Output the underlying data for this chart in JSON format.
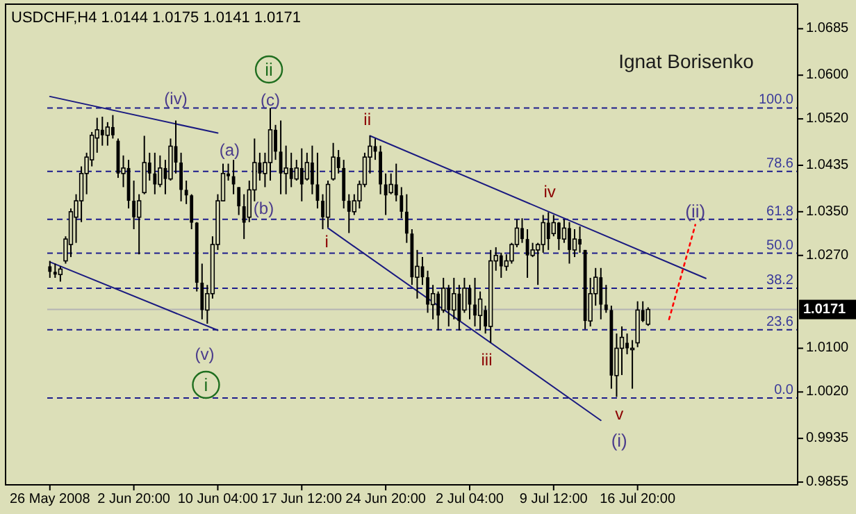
{
  "chart_data": {
    "type": "candlestick",
    "title": "USDCHF,H4  1.0144 1.0175 1.0141 1.0171",
    "categories": [
      "26 May 2008",
      null,
      null,
      null,
      null,
      null,
      null,
      null,
      null,
      null,
      null,
      null,
      null,
      null,
      null,
      null,
      "2 Jun 20:00",
      null,
      null,
      null,
      null,
      null,
      null,
      null,
      null,
      null,
      null,
      null,
      null,
      null,
      null,
      null,
      "10 Jun 04:00",
      null,
      null,
      null,
      null,
      null,
      null,
      null,
      null,
      null,
      null,
      null,
      null,
      null,
      null,
      null,
      "17 Jun 12:00",
      null,
      null,
      null,
      null,
      null,
      null,
      null,
      null,
      null,
      null,
      null,
      null,
      null,
      null,
      null,
      "24 Jun 20:00",
      null,
      null,
      null,
      null,
      null,
      null,
      null,
      null,
      null,
      null,
      null,
      null,
      null,
      null,
      null,
      "2 Jul 04:00",
      null,
      null,
      null,
      null,
      null,
      null,
      null,
      null,
      null,
      null,
      null,
      null,
      null,
      null,
      null,
      "9 Jul 12:00",
      null,
      null,
      null,
      null,
      null,
      null,
      null,
      null,
      null,
      null,
      null,
      null,
      null,
      null,
      null,
      "16 Jul 20:00",
      null,
      null,
      null,
      null,
      null,
      null,
      null,
      null,
      null,
      null,
      null,
      null,
      null,
      null,
      null,
      null,
      null,
      null,
      null,
      null,
      null,
      null,
      null,
      null,
      null,
      null,
      null,
      null,
      null,
      null
    ],
    "ohlc": [
      [
        1.025,
        1.026,
        1.0229,
        1.024
      ],
      [
        1.024,
        1.0255,
        1.0229,
        1.0235
      ],
      [
        1.0235,
        1.025,
        1.0222,
        1.0245
      ],
      [
        1.026,
        1.0305,
        1.0255,
        1.03
      ],
      [
        1.029,
        1.0356,
        1.0267,
        1.035
      ],
      [
        1.034,
        1.0382,
        1.0293,
        1.037
      ],
      [
        1.037,
        1.0433,
        1.0331,
        1.042
      ],
      [
        1.042,
        1.0458,
        1.0382,
        1.045
      ],
      [
        1.0445,
        1.0496,
        1.0433,
        1.049
      ],
      [
        1.0485,
        1.0522,
        1.0458,
        1.05
      ],
      [
        1.05,
        1.0524,
        1.0471,
        1.049
      ],
      [
        1.049,
        1.0514,
        1.0471,
        1.0505
      ],
      [
        1.0505,
        1.0527,
        1.0484,
        1.049
      ],
      [
        1.048,
        1.0484,
        1.0412,
        1.042
      ],
      [
        1.042,
        1.0453,
        1.0395,
        1.043
      ],
      [
        1.043,
        1.0445,
        1.0356,
        1.037
      ],
      [
        1.037,
        1.0407,
        1.0318,
        1.034
      ],
      [
        1.034,
        1.0382,
        1.0272,
        1.037
      ],
      [
        1.0385,
        1.0489,
        1.0382,
        1.044
      ],
      [
        1.044,
        1.0458,
        1.0407,
        1.042
      ],
      [
        1.042,
        1.0458,
        1.0382,
        1.04
      ],
      [
        1.04,
        1.0453,
        1.0395,
        1.043
      ],
      [
        1.043,
        1.0445,
        1.0382,
        1.041
      ],
      [
        1.041,
        1.0484,
        1.0407,
        1.047
      ],
      [
        1.047,
        1.0517,
        1.042,
        1.044
      ],
      [
        1.044,
        1.0458,
        1.0369,
        1.039
      ],
      [
        1.039,
        1.0407,
        1.0364,
        1.038
      ],
      [
        1.038,
        1.0382,
        1.0318,
        1.033
      ],
      [
        1.033,
        1.0331,
        1.0204,
        1.022
      ],
      [
        1.022,
        1.0255,
        1.0153,
        1.017
      ],
      [
        1.017,
        1.0216,
        1.0145,
        1.02
      ],
      [
        1.02,
        1.0305,
        1.0191,
        1.029
      ],
      [
        1.029,
        1.0382,
        1.028,
        1.037
      ],
      [
        1.037,
        1.0438,
        1.0369,
        1.042
      ],
      [
        1.042,
        1.0438,
        1.0407,
        1.0415
      ],
      [
        1.0415,
        1.0445,
        1.0382,
        1.04
      ],
      [
        1.0395,
        1.0395,
        1.0344,
        1.036
      ],
      [
        1.036,
        1.0382,
        1.03,
        1.033
      ],
      [
        1.034,
        1.0407,
        1.0331,
        1.039
      ],
      [
        1.039,
        1.0484,
        1.0369,
        1.044
      ],
      [
        1.044,
        1.0458,
        1.0407,
        1.042
      ],
      [
        1.042,
        1.0458,
        1.0395,
        1.044
      ],
      [
        1.044,
        1.054,
        1.0407,
        1.05
      ],
      [
        1.05,
        1.0509,
        1.0445,
        1.046
      ],
      [
        1.046,
        1.0517,
        1.0382,
        1.042
      ],
      [
        1.042,
        1.0471,
        1.0382,
        1.043
      ],
      [
        1.043,
        1.0458,
        1.0395,
        1.041
      ],
      [
        1.041,
        1.0445,
        1.0407,
        1.043
      ],
      [
        1.043,
        1.0466,
        1.0369,
        1.04
      ],
      [
        1.041,
        1.0458,
        1.0407,
        1.044
      ],
      [
        1.044,
        1.0471,
        1.0382,
        1.04
      ],
      [
        1.04,
        1.0458,
        1.0356,
        1.037
      ],
      [
        1.037,
        1.0382,
        1.0318,
        1.034
      ],
      [
        1.034,
        1.0407,
        1.0321,
        1.04
      ],
      [
        1.041,
        1.0476,
        1.0407,
        1.045
      ],
      [
        1.045,
        1.0463,
        1.042,
        1.043
      ],
      [
        1.043,
        1.0445,
        1.0356,
        1.037
      ],
      [
        1.037,
        1.0382,
        1.0311,
        1.035
      ],
      [
        1.035,
        1.0382,
        1.0344,
        1.037
      ],
      [
        1.037,
        1.0407,
        1.0356,
        1.04
      ],
      [
        1.04,
        1.0458,
        1.0395,
        1.045
      ],
      [
        1.045,
        1.0489,
        1.042,
        1.047
      ],
      [
        1.047,
        1.0484,
        1.0445,
        1.046
      ],
      [
        1.046,
        1.0471,
        1.0382,
        1.04
      ],
      [
        1.04,
        1.042,
        1.0344,
        1.038
      ],
      [
        1.0385,
        1.042,
        1.0382,
        1.04
      ],
      [
        1.04,
        1.0438,
        1.0369,
        1.038
      ],
      [
        1.038,
        1.0395,
        1.0338,
        1.035
      ],
      [
        1.035,
        1.0382,
        1.0293,
        1.031
      ],
      [
        1.031,
        1.0318,
        1.0216,
        1.023
      ],
      [
        1.023,
        1.028,
        1.0191,
        1.025
      ],
      [
        1.025,
        1.0267,
        1.0216,
        1.023
      ],
      [
        1.023,
        1.0242,
        1.0165,
        1.018
      ],
      [
        1.018,
        1.0216,
        1.0153,
        1.02
      ],
      [
        1.02,
        1.0204,
        1.0133,
        1.016
      ],
      [
        1.017,
        1.0229,
        1.0165,
        1.021
      ],
      [
        1.021,
        1.0216,
        1.014,
        1.017
      ],
      [
        1.017,
        1.0229,
        1.0153,
        1.02
      ],
      [
        1.02,
        1.0216,
        1.0133,
        1.015
      ],
      [
        1.017,
        1.0229,
        1.0165,
        1.021
      ],
      [
        1.021,
        1.0216,
        1.0153,
        1.018
      ],
      [
        1.018,
        1.0229,
        1.014,
        1.016
      ],
      [
        1.016,
        1.0204,
        1.0133,
        1.019
      ],
      [
        1.017,
        1.0178,
        1.0127,
        1.014
      ],
      [
        1.014,
        1.028,
        1.011,
        1.026
      ],
      [
        1.026,
        1.0285,
        1.0242,
        1.027
      ],
      [
        1.027,
        1.0275,
        1.0229,
        1.025
      ],
      [
        1.025,
        1.0272,
        1.0242,
        1.026
      ],
      [
        1.026,
        1.0293,
        1.0255,
        1.029
      ],
      [
        1.029,
        1.0336,
        1.0285,
        1.032
      ],
      [
        1.032,
        1.0338,
        1.0293,
        1.03
      ],
      [
        1.03,
        1.0318,
        1.0229,
        1.027
      ],
      [
        1.027,
        1.0293,
        1.0267,
        1.028
      ],
      [
        1.028,
        1.0293,
        1.0216,
        1.029
      ],
      [
        1.029,
        1.0344,
        1.0275,
        1.033
      ],
      [
        1.033,
        1.0349,
        1.028,
        1.03
      ],
      [
        1.031,
        1.0344,
        1.0305,
        1.033
      ],
      [
        1.033,
        1.0331,
        1.028,
        1.03
      ],
      [
        1.03,
        1.0336,
        1.0293,
        1.032
      ],
      [
        1.032,
        1.0331,
        1.0255,
        1.028
      ],
      [
        1.028,
        1.0318,
        1.0267,
        1.03
      ],
      [
        1.03,
        1.0323,
        1.0275,
        1.029
      ],
      [
        1.028,
        1.028,
        1.0135,
        1.015
      ],
      [
        1.015,
        1.0229,
        1.014,
        1.02
      ],
      [
        1.02,
        1.0247,
        1.0178,
        1.023
      ],
      [
        1.023,
        1.0247,
        1.0153,
        1.018
      ],
      [
        1.018,
        1.0216,
        1.0165,
        1.017
      ],
      [
        1.017,
        1.0178,
        1.0026,
        1.005
      ],
      [
        1.005,
        1.0127,
        1.0011,
        1.01
      ],
      [
        1.01,
        1.014,
        1.0051,
        1.012
      ],
      [
        1.011,
        1.0127,
        1.0089,
        1.01
      ],
      [
        1.01,
        1.0115,
        1.0026,
        1.01
      ],
      [
        1.011,
        1.0186,
        1.0102,
        1.017
      ],
      [
        1.017,
        1.0186,
        1.0148,
        1.015
      ],
      [
        1.0144,
        1.0175,
        1.0141,
        1.0171
      ],
      null,
      null,
      null,
      null,
      null,
      null,
      null,
      null,
      null,
      null,
      null,
      null,
      null,
      null,
      null,
      null,
      null,
      null,
      null,
      null,
      null,
      null,
      null,
      null,
      null,
      null,
      null,
      null
    ],
    "color": "#000000",
    "series": [
      {
        "type": "line",
        "color": "#1a1a80",
        "values": [
          1.0561,
          null,
          null,
          null,
          null,
          null,
          null,
          null,
          null,
          null,
          null,
          null,
          null,
          null,
          null,
          null,
          null,
          null,
          null,
          null,
          null,
          null,
          null,
          null,
          null,
          null,
          null,
          null,
          null,
          null,
          null,
          null,
          1.0494,
          null,
          null,
          null,
          null,
          null,
          null,
          null,
          null,
          null,
          null,
          null,
          null,
          null,
          null,
          null,
          null,
          null,
          null,
          null,
          null,
          null,
          null,
          null,
          null,
          null,
          null,
          null,
          null,
          null,
          null,
          null,
          null,
          null,
          null,
          null,
          null,
          null,
          null,
          null,
          null,
          null,
          null,
          null,
          null,
          null,
          null,
          null,
          null,
          null,
          null,
          null,
          null,
          null,
          null,
          null,
          null,
          null,
          null,
          null,
          null,
          null,
          null,
          null,
          null,
          null,
          null,
          null,
          null,
          null,
          null,
          null,
          null,
          null,
          null,
          null,
          null,
          null,
          null,
          null,
          null,
          null,
          null,
          null,
          null,
          null,
          null,
          null,
          null,
          null,
          null,
          null,
          null,
          null,
          null,
          null,
          null,
          null,
          null,
          null,
          null,
          null,
          null,
          null,
          null,
          null,
          null,
          null,
          null,
          null,
          null
        ]
      },
      {
        "type": "line",
        "color": "#1a1a80",
        "values": [
          1.0258,
          null,
          null,
          null,
          null,
          null,
          null,
          null,
          null,
          null,
          null,
          null,
          null,
          null,
          null,
          null,
          null,
          null,
          null,
          null,
          null,
          null,
          null,
          null,
          null,
          null,
          null,
          null,
          null,
          null,
          null,
          null,
          1.0133,
          null,
          null,
          null,
          null,
          null,
          null,
          null,
          null,
          null,
          null,
          null,
          null,
          null,
          null,
          null,
          null,
          null,
          null,
          null,
          null,
          null,
          null,
          null,
          null,
          null,
          null,
          null,
          null,
          null,
          null,
          null,
          null,
          null,
          null,
          null,
          null,
          null,
          null,
          null,
          null,
          null,
          null,
          null,
          null,
          null,
          null,
          null,
          null,
          null,
          null,
          null,
          null,
          null,
          null,
          null,
          null,
          null,
          null,
          null,
          null,
          null,
          null,
          null,
          null,
          null,
          null,
          null,
          null,
          null,
          null,
          null,
          null,
          null,
          null,
          null,
          null,
          null,
          null,
          null,
          null,
          null,
          null,
          null,
          null,
          null,
          null,
          null,
          null,
          null,
          null,
          null,
          null,
          null,
          null,
          null,
          null,
          null,
          null,
          null,
          null,
          null,
          null,
          null,
          null,
          null,
          null,
          null,
          null,
          null,
          null
        ]
      },
      {
        "type": "line",
        "color": "#1a1a80",
        "values": [
          null,
          null,
          null,
          null,
          null,
          null,
          null,
          null,
          null,
          null,
          null,
          null,
          null,
          null,
          null,
          null,
          null,
          null,
          null,
          null,
          null,
          null,
          null,
          null,
          null,
          null,
          null,
          null,
          null,
          null,
          null,
          null,
          null,
          null,
          null,
          null,
          null,
          null,
          null,
          null,
          null,
          null,
          null,
          null,
          null,
          null,
          null,
          null,
          null,
          null,
          null,
          null,
          null,
          null,
          null,
          null,
          null,
          null,
          null,
          null,
          null,
          1.0489,
          null,
          null,
          null,
          null,
          null,
          null,
          null,
          null,
          null,
          null,
          null,
          null,
          null,
          null,
          null,
          null,
          null,
          null,
          null,
          null,
          null,
          null,
          null,
          null,
          null,
          null,
          null,
          null,
          null,
          null,
          null,
          null,
          null,
          null,
          null,
          null,
          null,
          null,
          null,
          null,
          null,
          null,
          null,
          null,
          null,
          null,
          null,
          null,
          null,
          null,
          null,
          null,
          null,
          null,
          null,
          null,
          null,
          null,
          null,
          null,
          null,
          null,
          null,
          1.0228,
          null,
          null,
          null,
          null,
          null,
          null,
          null,
          null,
          null,
          null,
          null,
          null,
          null,
          null,
          null,
          null,
          null
        ]
      },
      {
        "type": "line",
        "color": "#1a1a80",
        "values": [
          null,
          null,
          null,
          null,
          null,
          null,
          null,
          null,
          null,
          null,
          null,
          null,
          null,
          null,
          null,
          null,
          null,
          null,
          null,
          null,
          null,
          null,
          null,
          null,
          null,
          null,
          null,
          null,
          null,
          null,
          null,
          null,
          null,
          null,
          null,
          null,
          null,
          null,
          null,
          null,
          null,
          null,
          null,
          null,
          null,
          null,
          null,
          null,
          null,
          null,
          null,
          null,
          null,
          1.032,
          null,
          null,
          null,
          null,
          null,
          null,
          null,
          null,
          null,
          null,
          null,
          null,
          null,
          null,
          null,
          null,
          null,
          null,
          null,
          null,
          null,
          null,
          null,
          null,
          null,
          null,
          null,
          null,
          null,
          null,
          null,
          null,
          null,
          null,
          null,
          null,
          null,
          null,
          null,
          null,
          null,
          null,
          null,
          null,
          null,
          null,
          null,
          null,
          null,
          null,
          null,
          0.9968,
          null,
          null,
          null,
          null,
          null,
          null,
          null,
          null,
          null,
          null,
          null,
          null,
          null,
          null,
          null,
          null,
          null,
          null,
          null,
          null,
          null,
          null,
          null,
          null,
          null,
          null,
          null,
          null,
          null,
          null,
          null,
          null,
          null,
          null,
          null,
          null,
          null
        ]
      },
      {
        "type": "line",
        "color": "#ff0000",
        "line_style": "dotted",
        "values": [
          null,
          null,
          null,
          null,
          null,
          null,
          null,
          null,
          null,
          null,
          null,
          null,
          null,
          null,
          null,
          null,
          null,
          null,
          null,
          null,
          null,
          null,
          null,
          null,
          null,
          null,
          null,
          null,
          null,
          null,
          null,
          null,
          null,
          null,
          null,
          null,
          null,
          null,
          null,
          null,
          null,
          null,
          null,
          null,
          null,
          null,
          null,
          null,
          null,
          null,
          null,
          null,
          null,
          null,
          null,
          null,
          null,
          null,
          null,
          null,
          null,
          null,
          null,
          null,
          null,
          null,
          null,
          null,
          null,
          null,
          null,
          null,
          null,
          null,
          null,
          null,
          null,
          null,
          null,
          null,
          null,
          null,
          null,
          null,
          null,
          null,
          null,
          null,
          null,
          null,
          null,
          null,
          null,
          null,
          null,
          null,
          null,
          null,
          null,
          null,
          null,
          null,
          null,
          null,
          null,
          null,
          null,
          null,
          null,
          null,
          null,
          null,
          null,
          null,
          null,
          null,
          null,
          null,
          1.0153,
          null,
          null,
          null,
          null,
          1.0326,
          null,
          null,
          null,
          null,
          null,
          null,
          null,
          null,
          null,
          null,
          null,
          null,
          null,
          null,
          null,
          null,
          null,
          null,
          null
        ]
      }
    ],
    "ylim": [
      0.985,
      1.073
    ],
    "yticks": [
      1.0685,
      {
        "value": 1.06,
        "label": "1.0600"
      },
      {
        "value": 1.052,
        "label": "1.0520"
      },
      1.0435,
      {
        "value": 1.035,
        "label": "1.0350"
      },
      {
        "value": 1.027,
        "label": "1.0270"
      },
      {
        "value": 1.01,
        "label": "1.0100"
      },
      {
        "value": 1.002,
        "label": "1.0020"
      },
      0.9935,
      0.9855
    ],
    "ref_lines": [
      {
        "axis": "y",
        "value": 1.054,
        "color": "#1c1c8c",
        "line_style": "dashed"
      },
      {
        "axis": "y",
        "value": 1.0424,
        "color": "#1c1c8c",
        "line_style": "dashed"
      },
      {
        "axis": "y",
        "value": 1.0336,
        "color": "#1c1c8c",
        "line_style": "dashed"
      },
      {
        "axis": "y",
        "value": 1.0274,
        "color": "#1c1c8c",
        "line_style": "dashed"
      },
      {
        "axis": "y",
        "value": 1.021,
        "color": "#1c1c8c",
        "line_style": "dashed"
      },
      {
        "axis": "y",
        "value": 1.0134,
        "color": "#1c1c8c",
        "line_style": "dashed"
      },
      {
        "axis": "y",
        "value": 1.0009,
        "color": "#1c1c8c",
        "line_style": "dashed"
      },
      {
        "axis": "y",
        "value": 1.0171,
        "label": "1.0171",
        "color": "#b4b4b4",
        "line_style": "solid"
      }
    ],
    "annotations": [
      "(iv)",
      "(a)",
      "(b)",
      "(c)",
      "ii",
      "(v)",
      "i",
      "i",
      "ii",
      "iii",
      "iv",
      "v",
      "(i)",
      "(ii)",
      "Ignat Borisenko",
      {
        "text": "100.0",
        "y": 1.054
      },
      {
        "text": "78.6",
        "y": 1.0424
      },
      {
        "text": "61.8",
        "y": 1.0336
      },
      {
        "text": "50.0",
        "y": 1.0274
      },
      {
        "text": "38.2",
        "y": 1.021
      },
      {
        "text": "23.6",
        "y": 1.0134
      },
      {
        "text": "0.0",
        "y": 1.0009
      }
    ],
    "grid": false
  }
}
